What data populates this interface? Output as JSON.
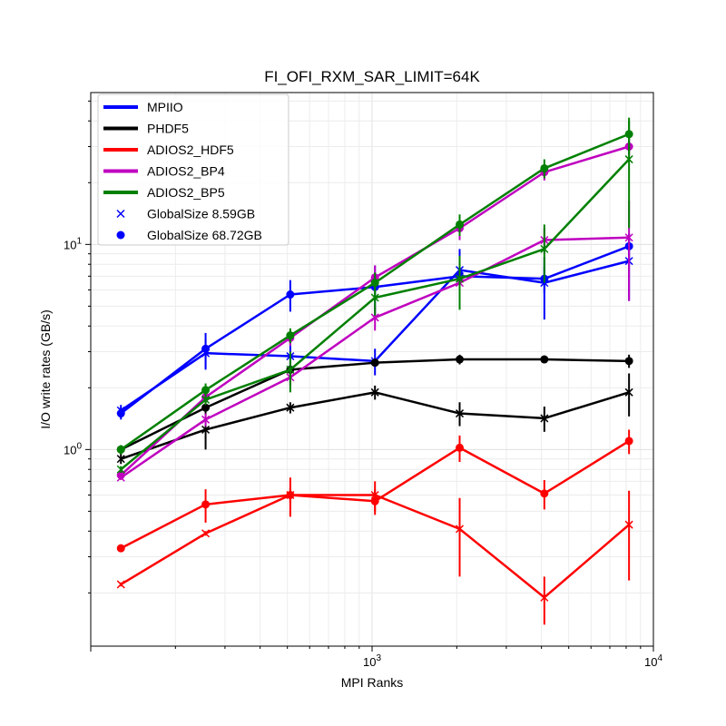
{
  "chart_data": {
    "type": "line",
    "title": "FI_OFI_RXM_SAR_LIMIT=64K",
    "xlabel": "MPI Ranks",
    "ylabel": "I/O write rates (GB/s)",
    "xscale": "log",
    "yscale": "log",
    "xlim": [
      100,
      10000
    ],
    "ylim": [
      0.11,
      55
    ],
    "x_ticks": [
      {
        "value": 1000,
        "base": "10",
        "exp": "3"
      },
      {
        "value": 10000,
        "base": "10",
        "exp": "4"
      }
    ],
    "y_ticks": [
      {
        "value": 1,
        "base": "10",
        "exp": "0"
      },
      {
        "value": 10,
        "base": "10",
        "exp": "1"
      }
    ],
    "grid": true,
    "legend_position": "upper-left",
    "x": [
      128,
      256,
      512,
      1024,
      2048,
      4096,
      8192
    ],
    "marker_sizes": [
      {
        "label": "GlobalSize 8.59GB",
        "marker": "x"
      },
      {
        "label": "GlobalSize 68.72GB",
        "marker": "o"
      }
    ],
    "series": [
      {
        "name": "MPIIO",
        "color": "#0000ff",
        "size_8_59GB": {
          "values": [
            1.55,
            2.95,
            2.85,
            2.7,
            7.5,
            6.5,
            8.3
          ],
          "err": [
            0.1,
            0.5,
            0.5,
            0.4,
            2.0,
            2.2,
            3.0
          ]
        },
        "size_68_72GB": {
          "values": [
            1.5,
            3.1,
            5.7,
            6.2,
            7.0,
            6.8,
            9.8
          ],
          "err": [
            0.1,
            0.6,
            1.0,
            1.7,
            1.0,
            1.0,
            1.5
          ]
        }
      },
      {
        "name": "PHDF5",
        "color": "#000000",
        "size_8_59GB": {
          "values": [
            0.9,
            1.25,
            1.6,
            1.9,
            1.5,
            1.42,
            1.9
          ],
          "err": [
            0.05,
            0.25,
            0.1,
            0.15,
            0.2,
            0.2,
            0.45
          ]
        },
        "size_68_72GB": {
          "values": [
            1.0,
            1.6,
            2.45,
            2.65,
            2.75,
            2.75,
            2.7
          ],
          "err": [
            0.05,
            0.15,
            0.15,
            0.1,
            0.15,
            0.05,
            0.2
          ]
        }
      },
      {
        "name": "ADIOS2_HDF5",
        "color": "#ff0000",
        "size_8_59GB": {
          "values": [
            0.22,
            0.39,
            0.6,
            0.6,
            0.41,
            0.19,
            0.43
          ],
          "err": [
            0.005,
            0.01,
            0.05,
            0.1,
            0.17,
            0.05,
            0.2
          ]
        },
        "size_68_72GB": {
          "values": [
            0.33,
            0.54,
            0.6,
            0.56,
            1.02,
            0.61,
            1.1
          ],
          "err": [
            0.01,
            0.1,
            0.13,
            0.08,
            0.15,
            0.1,
            0.15
          ]
        }
      },
      {
        "name": "ADIOS2_BP4",
        "color": "#bf00bf",
        "size_8_59GB": {
          "values": [
            0.73,
            1.4,
            2.25,
            4.4,
            6.5,
            10.5,
            10.8
          ],
          "err": [
            0.02,
            0.1,
            0.2,
            0.6,
            1.0,
            1.5,
            5.5
          ]
        },
        "size_68_72GB": {
          "values": [
            0.75,
            1.8,
            3.5,
            6.9,
            12.0,
            22.5,
            30.0
          ],
          "err": [
            0.03,
            0.15,
            0.3,
            1.0,
            1.5,
            2.0,
            3.0
          ]
        }
      },
      {
        "name": "ADIOS2_BP5",
        "color": "#008000",
        "size_8_59GB": {
          "values": [
            0.8,
            1.75,
            2.45,
            5.5,
            6.8,
            9.5,
            26.0
          ],
          "err": [
            0.03,
            0.1,
            0.55,
            1.0,
            2.0,
            3.0,
            14.0
          ]
        },
        "size_68_72GB": {
          "values": [
            1.0,
            1.95,
            3.6,
            6.5,
            12.5,
            23.5,
            34.5
          ],
          "err": [
            0.05,
            0.15,
            0.3,
            0.8,
            1.5,
            2.5,
            7.0
          ]
        }
      }
    ]
  }
}
